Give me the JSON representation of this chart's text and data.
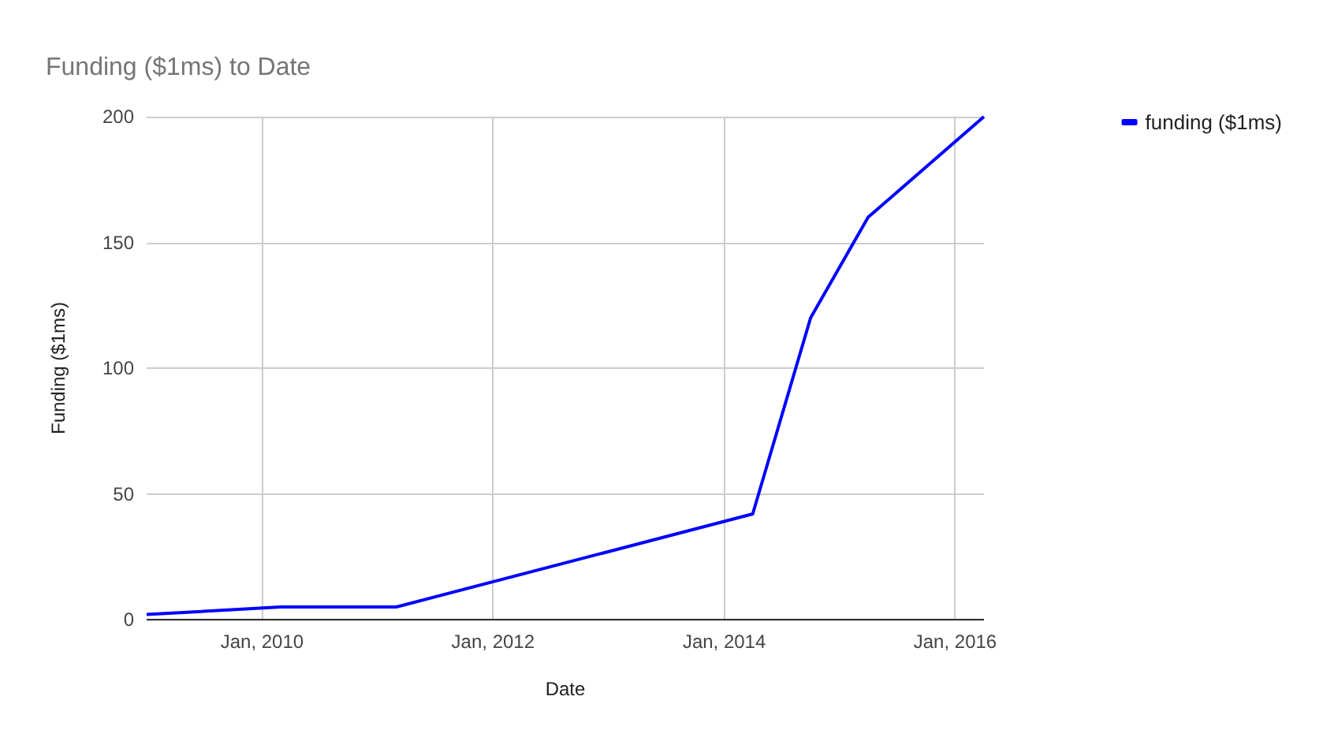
{
  "chart_data": {
    "type": "line",
    "title": "Funding ($1ms) to Date",
    "xlabel": "Date",
    "ylabel": "Funding ($1ms)",
    "x": [
      "2009-01",
      "2010-03",
      "2011-03",
      "2014-04",
      "2014-10",
      "2015-04",
      "2016-04"
    ],
    "series": [
      {
        "name": "funding ($1ms)",
        "color": "#0000ff",
        "values": [
          2,
          5,
          5,
          42,
          120,
          160,
          200
        ]
      }
    ],
    "xlim": [
      "2009-01",
      "2016-04"
    ],
    "xticks": [
      {
        "value": "2010-01",
        "label": "Jan, 2010"
      },
      {
        "value": "2012-01",
        "label": "Jan, 2012"
      },
      {
        "value": "2014-01",
        "label": "Jan, 2014"
      },
      {
        "value": "2016-01",
        "label": "Jan, 2016"
      }
    ],
    "ylim": [
      0,
      200
    ],
    "yticks": [
      0,
      50,
      100,
      150,
      200
    ],
    "grid": true,
    "legend": "right",
    "marker": "none",
    "line_style": "solid"
  }
}
